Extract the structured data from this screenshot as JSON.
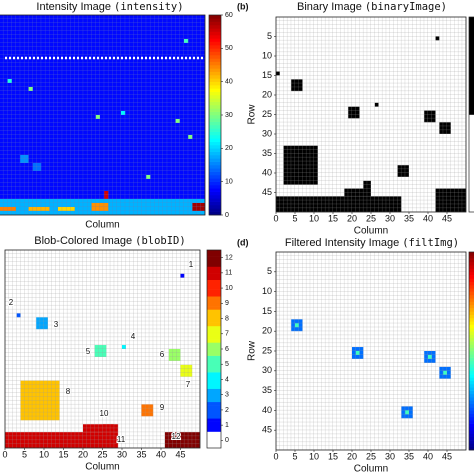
{
  "chart_data": [
    {
      "type": "heatmap",
      "title": "Intensity Image",
      "title_code": "(intensity)",
      "xlabel": "Column",
      "xlim": [
        0,
        50
      ],
      "ylim": [
        0,
        50
      ],
      "y_inverted": true,
      "colormap": "jet",
      "clim": [
        0,
        60
      ],
      "background": 8,
      "blobs": [
        {
          "col": 45,
          "row": 6,
          "w": 1,
          "h": 1,
          "value": 26
        },
        {
          "col": 3,
          "row": 16,
          "w": 1,
          "h": 1,
          "value": 24
        },
        {
          "col": 8,
          "row": 18,
          "w": 1,
          "h": 1,
          "value": 30
        },
        {
          "col": 30,
          "row": 24,
          "w": 1,
          "h": 1,
          "value": 22
        },
        {
          "col": 24,
          "row": 25,
          "w": 1,
          "h": 1,
          "value": 30
        },
        {
          "col": 43,
          "row": 26,
          "w": 1,
          "h": 1,
          "value": 30
        },
        {
          "col": 46,
          "row": 30,
          "w": 1,
          "h": 1,
          "value": 30
        },
        {
          "col": 6,
          "row": 35,
          "w": 2,
          "h": 2,
          "value": 16
        },
        {
          "col": 9,
          "row": 37,
          "w": 2,
          "h": 2,
          "value": 14
        },
        {
          "col": 36,
          "row": 40,
          "w": 1,
          "h": 1,
          "value": 30
        },
        {
          "col": 26,
          "row": 44,
          "w": 1,
          "h": 2,
          "value": 55
        },
        {
          "col": 0,
          "row": 46,
          "w": 50,
          "h": 4,
          "value": 18
        },
        {
          "col": 1,
          "row": 48,
          "w": 4,
          "h": 1,
          "value": 45
        },
        {
          "col": 8,
          "row": 48,
          "w": 5,
          "h": 1,
          "value": 42
        },
        {
          "col": 15,
          "row": 48,
          "w": 4,
          "h": 1,
          "value": 40
        },
        {
          "col": 23,
          "row": 47,
          "w": 4,
          "h": 2,
          "value": 44
        },
        {
          "col": 47,
          "row": 47,
          "w": 3,
          "h": 2,
          "value": 58
        }
      ],
      "colorbar": {
        "ticks": [
          0,
          10,
          20,
          30,
          40,
          50,
          60
        ]
      }
    },
    {
      "type": "heatmap",
      "panel_label": "(b)",
      "title": "Binary Image",
      "title_code": "(binaryImage)",
      "xlabel": "Column",
      "ylabel": "Row",
      "xlim": [
        0,
        50
      ],
      "ylim": [
        0,
        50
      ],
      "y_inverted": true,
      "colormap": "gray_r",
      "clim": [
        0,
        1
      ],
      "background": 0,
      "xticks": [
        0,
        5,
        10,
        15,
        20,
        25,
        30,
        35,
        40,
        45
      ],
      "yticks": [
        5,
        10,
        15,
        20,
        25,
        30,
        35,
        40,
        45
      ],
      "blobs": [
        {
          "col": 42,
          "row": 5,
          "w": 1,
          "h": 1,
          "value": 1
        },
        {
          "col": 0,
          "row": 14,
          "w": 1,
          "h": 1,
          "value": 1
        },
        {
          "col": 4,
          "row": 16,
          "w": 3,
          "h": 3,
          "value": 1
        },
        {
          "col": 26,
          "row": 22,
          "w": 1,
          "h": 1,
          "value": 1
        },
        {
          "col": 19,
          "row": 23,
          "w": 3,
          "h": 3,
          "value": 1
        },
        {
          "col": 39,
          "row": 24,
          "w": 3,
          "h": 3,
          "value": 1
        },
        {
          "col": 43,
          "row": 27,
          "w": 3,
          "h": 3,
          "value": 1
        },
        {
          "col": 2,
          "row": 33,
          "w": 9,
          "h": 10,
          "value": 1
        },
        {
          "col": 32,
          "row": 38,
          "w": 3,
          "h": 3,
          "value": 1
        },
        {
          "col": 23,
          "row": 42,
          "w": 2,
          "h": 3,
          "value": 1
        },
        {
          "col": 18,
          "row": 44,
          "w": 7,
          "h": 2,
          "value": 1
        },
        {
          "col": 0,
          "row": 46,
          "w": 33,
          "h": 4,
          "value": 1
        },
        {
          "col": 42,
          "row": 44,
          "w": 8,
          "h": 6,
          "value": 1
        }
      ],
      "colorbar": {}
    },
    {
      "type": "heatmap",
      "title": "Blob-Colored Image",
      "title_code": "(blobID)",
      "xlabel": "Column",
      "xlim": [
        0,
        50
      ],
      "ylim": [
        0,
        50
      ],
      "y_inverted": true,
      "colormap": "jet_discrete",
      "clim": [
        -0.5,
        12.5
      ],
      "background": 0,
      "zero_color": "#ffffff",
      "xticks": [
        0,
        5,
        10,
        15,
        20,
        25,
        30,
        35,
        40,
        45
      ],
      "blobs": [
        {
          "col": 45,
          "row": 6,
          "w": 1,
          "h": 1,
          "value": 1
        },
        {
          "col": 3,
          "row": 16,
          "w": 1,
          "h": 1,
          "value": 2
        },
        {
          "col": 8,
          "row": 17,
          "w": 3,
          "h": 3,
          "value": 3
        },
        {
          "col": 30,
          "row": 24,
          "w": 1,
          "h": 1,
          "value": 4
        },
        {
          "col": 23,
          "row": 24,
          "w": 3,
          "h": 3,
          "value": 5
        },
        {
          "col": 42,
          "row": 25,
          "w": 3,
          "h": 3,
          "value": 6
        },
        {
          "col": 45,
          "row": 29,
          "w": 3,
          "h": 3,
          "value": 7
        },
        {
          "col": 4,
          "row": 33,
          "w": 10,
          "h": 10,
          "value": 8
        },
        {
          "col": 35,
          "row": 39,
          "w": 3,
          "h": 3,
          "value": 9
        },
        {
          "col": 25,
          "row": 44,
          "w": 3,
          "h": 2,
          "value": 10
        },
        {
          "col": 0,
          "row": 46,
          "w": 29,
          "h": 4,
          "value": 11
        },
        {
          "col": 20,
          "row": 44,
          "w": 9,
          "h": 2,
          "value": 11
        },
        {
          "col": 41,
          "row": 46,
          "w": 9,
          "h": 4,
          "value": 12
        }
      ],
      "colorbar": {
        "ticks": [
          0,
          1,
          2,
          3,
          4,
          5,
          6,
          7,
          8,
          9,
          10,
          11,
          12
        ]
      }
    },
    {
      "type": "heatmap",
      "panel_label": "(d)",
      "title": "Filtered Intensity Image",
      "title_code": "(filtImg)",
      "xlabel": "Column",
      "ylabel": "Row",
      "xlim": [
        0,
        50
      ],
      "ylim": [
        0,
        50
      ],
      "y_inverted": true,
      "colormap": "jet",
      "clim": [
        0,
        60
      ],
      "background": 0,
      "zero_color": "#ffffff",
      "xticks": [
        0,
        5,
        10,
        15,
        20,
        25,
        30,
        35,
        40,
        45
      ],
      "yticks": [
        5,
        10,
        15,
        20,
        25,
        30,
        35,
        40,
        45
      ],
      "blobs": [
        {
          "col": 4,
          "row": 17,
          "w": 3,
          "h": 3,
          "value": 14
        },
        {
          "col": 5,
          "row": 18,
          "w": 1,
          "h": 1,
          "value": 26
        },
        {
          "col": 20,
          "row": 24,
          "w": 3,
          "h": 3,
          "value": 14
        },
        {
          "col": 21,
          "row": 25,
          "w": 1,
          "h": 1,
          "value": 26
        },
        {
          "col": 39,
          "row": 25,
          "w": 3,
          "h": 3,
          "value": 14
        },
        {
          "col": 40,
          "row": 26,
          "w": 1,
          "h": 1,
          "value": 26
        },
        {
          "col": 43,
          "row": 29,
          "w": 3,
          "h": 3,
          "value": 14
        },
        {
          "col": 44,
          "row": 30,
          "w": 1,
          "h": 1,
          "value": 26
        },
        {
          "col": 33,
          "row": 39,
          "w": 3,
          "h": 3,
          "value": 14
        },
        {
          "col": 34,
          "row": 40,
          "w": 1,
          "h": 1,
          "value": 26
        }
      ],
      "colorbar": {}
    }
  ]
}
